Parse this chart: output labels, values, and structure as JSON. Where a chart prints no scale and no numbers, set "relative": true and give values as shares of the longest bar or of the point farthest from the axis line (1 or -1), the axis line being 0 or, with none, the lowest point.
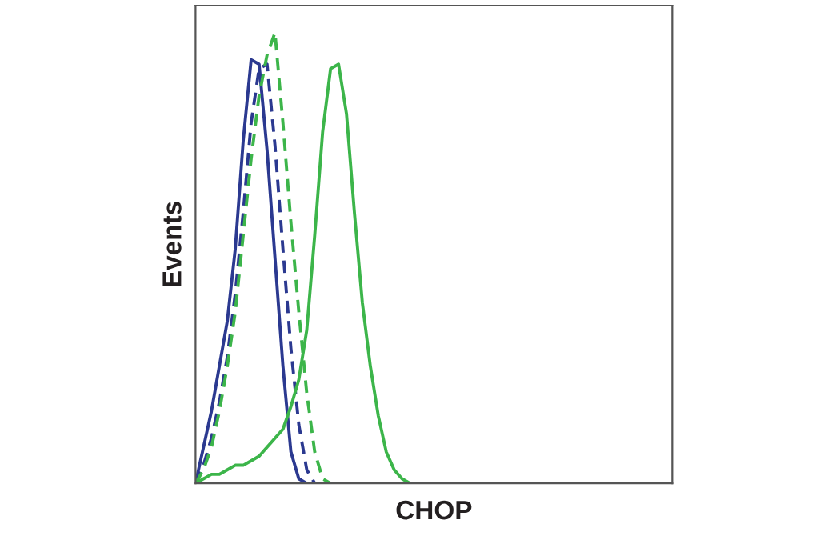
{
  "chart_data": {
    "type": "line",
    "relative": true,
    "xlabel": "CHOP",
    "ylabel": "Events",
    "grid": false,
    "legend": false,
    "marker": "none",
    "categories": [
      null,
      null,
      null,
      null,
      null,
      null,
      null,
      null,
      null,
      null,
      null,
      null,
      null,
      null,
      null,
      null,
      null,
      null,
      null,
      null,
      null,
      null,
      null,
      null,
      null,
      null,
      null,
      null,
      null,
      null,
      null,
      null,
      null,
      null,
      null,
      null,
      null,
      null,
      null,
      null,
      null,
      null,
      null,
      null,
      null,
      null,
      null,
      null,
      null,
      null,
      null,
      null,
      null,
      null,
      null,
      null,
      null,
      null,
      null,
      null,
      null
    ],
    "series": [
      {
        "color": "#2b3990",
        "line_style": "solid",
        "values": [
          0,
          0.08,
          0.16,
          0.26,
          0.36,
          0.52,
          0.76,
          0.94,
          0.93,
          0.74,
          0.5,
          0.26,
          0.07,
          0.01,
          0,
          0,
          null,
          null,
          null,
          null,
          null,
          null,
          null,
          null,
          null,
          null,
          null,
          null,
          null,
          null,
          null,
          null,
          null,
          null,
          null,
          null,
          null,
          null,
          null,
          null,
          null,
          null,
          null,
          null,
          null,
          null,
          null,
          null,
          null,
          null,
          null,
          null,
          null,
          null,
          null,
          null,
          null,
          null,
          null,
          null,
          null
        ]
      },
      {
        "color": "#2b3990",
        "line_style": "dashed",
        "values": [
          0,
          0.04,
          0.1,
          0.18,
          0.28,
          0.42,
          0.6,
          0.8,
          0.92,
          0.93,
          0.75,
          0.52,
          0.3,
          0.13,
          0.03,
          0,
          0,
          null,
          null,
          null,
          null,
          null,
          null,
          null,
          null,
          null,
          null,
          null,
          null,
          null,
          null,
          null,
          null,
          null,
          null,
          null,
          null,
          null,
          null,
          null,
          null,
          null,
          null,
          null,
          null,
          null,
          null,
          null,
          null,
          null,
          null,
          null,
          null,
          null,
          null,
          null,
          null,
          null,
          null,
          null,
          null
        ]
      },
      {
        "color": "#3cb54a",
        "line_style": "dashed",
        "values": [
          0,
          0.03,
          0.08,
          0.16,
          0.26,
          0.38,
          0.55,
          0.72,
          0.86,
          0.95,
          1.0,
          0.8,
          0.58,
          0.38,
          0.2,
          0.07,
          0.01,
          0,
          null,
          null,
          null,
          null,
          null,
          null,
          null,
          null,
          null,
          null,
          null,
          null,
          null,
          null,
          null,
          null,
          null,
          null,
          null,
          null,
          null,
          null,
          null,
          null,
          null,
          null,
          null,
          null,
          null,
          null,
          null,
          null,
          null,
          null,
          null,
          null,
          null,
          null,
          null,
          null,
          null,
          null,
          null
        ]
      },
      {
        "color": "#3cb54a",
        "line_style": "solid",
        "values": [
          0,
          0.01,
          0.02,
          0.02,
          0.03,
          0.04,
          0.04,
          0.05,
          0.06,
          0.08,
          0.1,
          0.12,
          0.17,
          0.23,
          0.34,
          0.55,
          0.78,
          0.92,
          0.93,
          0.82,
          0.6,
          0.4,
          0.26,
          0.15,
          0.07,
          0.03,
          0.01,
          0,
          0,
          0,
          0,
          0,
          0,
          0,
          0,
          0,
          0,
          0,
          0,
          0,
          0,
          0,
          0,
          0,
          0,
          0,
          0,
          0,
          0,
          0,
          0,
          0,
          0,
          0,
          0,
          0,
          0,
          0,
          0,
          0,
          0
        ]
      }
    ]
  }
}
